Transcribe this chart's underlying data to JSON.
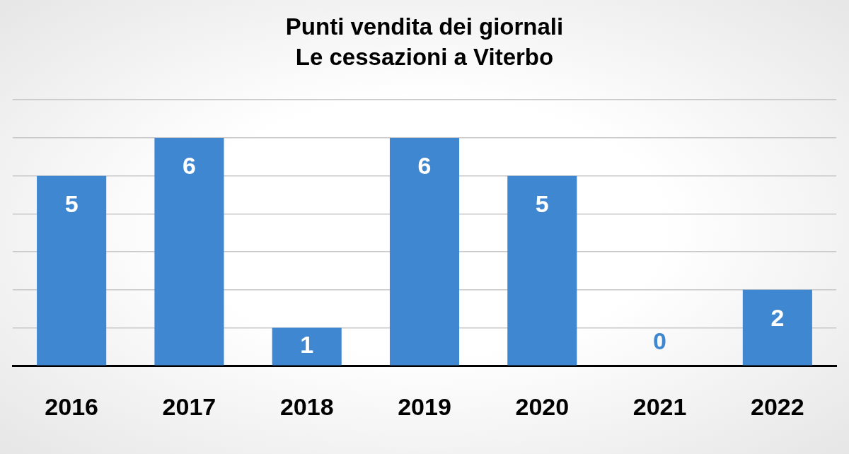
{
  "chart_data": {
    "type": "bar",
    "title": "Punti vendita dei giornali",
    "subtitle": "Le cessazioni a Viterbo",
    "categories": [
      "2016",
      "2017",
      "2018",
      "2019",
      "2020",
      "2021",
      "2022"
    ],
    "values": [
      5,
      6,
      1,
      6,
      5,
      0,
      2
    ],
    "color": "#3f87d0",
    "ylim": [
      0,
      7
    ],
    "yticks": [
      {
        "value": 0,
        "label": null
      },
      {
        "value": 1,
        "label": null
      },
      {
        "value": 2,
        "label": null
      },
      {
        "value": 3,
        "label": null
      },
      {
        "value": 4,
        "label": null
      },
      {
        "value": 5,
        "label": null
      },
      {
        "value": 6,
        "label": null
      },
      {
        "value": 7,
        "label": null
      }
    ],
    "grid": "y",
    "tick_labels": "x",
    "data_labels": true
  }
}
